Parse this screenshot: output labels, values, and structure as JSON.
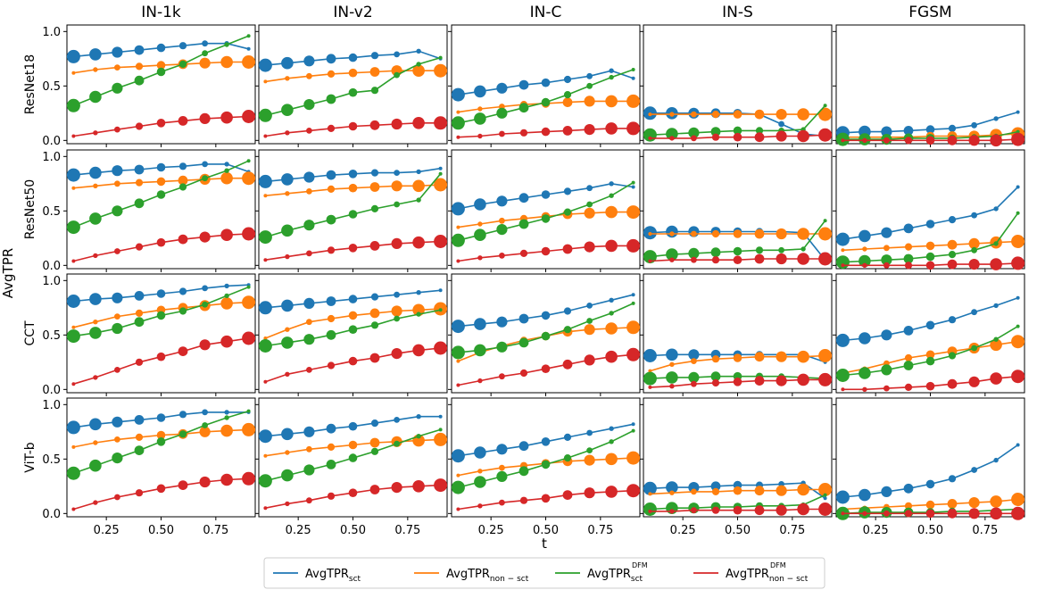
{
  "chart_data": {
    "type": "line",
    "ylabel": "AvgTPR",
    "xlabel": "t",
    "columns": [
      "IN-1k",
      "IN-v2",
      "IN-C",
      "IN-S",
      "FGSM"
    ],
    "rows": [
      "ResNet18",
      "ResNet50",
      "CCT",
      "ViT-b"
    ],
    "x": [
      0.1,
      0.2,
      0.3,
      0.4,
      0.5,
      0.6,
      0.7,
      0.8,
      0.9
    ],
    "xticks": [
      0.25,
      0.5,
      0.75
    ],
    "xtick_labels": [
      "0.25",
      "0.50",
      "0.75"
    ],
    "xlim": [
      0.07,
      0.93
    ],
    "ylim": [
      -0.03,
      1.06
    ],
    "yticks": [
      0.0,
      0.5,
      1.0
    ],
    "ytick_labels": [
      "0.0",
      "0.5",
      "1.0"
    ],
    "marker_size_note": "marker size decreases for sct series and increases for non-sct series as t grows",
    "legend_position": "bottom-center",
    "series": [
      {
        "key": "sct",
        "base": "AvgTPR",
        "sub": "sct",
        "sup": "",
        "color": "#1f77b4",
        "marker": "desc"
      },
      {
        "key": "nonsct",
        "base": "AvgTPR",
        "sub": "non − sct",
        "sup": "",
        "color": "#ff7f0e",
        "marker": "asc"
      },
      {
        "key": "sctdfm",
        "base": "AvgTPR",
        "sub": "sct",
        "sup": "DFM",
        "color": "#2ca02c",
        "marker": "desc"
      },
      {
        "key": "nonsctdfm",
        "base": "AvgTPR",
        "sub": "non − sct",
        "sup": "DFM",
        "color": "#d62728",
        "marker": "asc"
      }
    ],
    "panels": [
      [
        {
          "sct": [
            0.77,
            0.79,
            0.81,
            0.83,
            0.85,
            0.87,
            0.89,
            0.89,
            0.84
          ],
          "nonsct": [
            0.62,
            0.65,
            0.67,
            0.68,
            0.69,
            0.7,
            0.71,
            0.72,
            0.72
          ],
          "sctdfm": [
            0.32,
            0.4,
            0.48,
            0.55,
            0.63,
            0.7,
            0.8,
            0.88,
            0.96
          ],
          "nonsctdfm": [
            0.04,
            0.07,
            0.1,
            0.13,
            0.16,
            0.18,
            0.2,
            0.21,
            0.22
          ]
        },
        {
          "sct": [
            0.69,
            0.71,
            0.73,
            0.75,
            0.76,
            0.78,
            0.79,
            0.82,
            0.75
          ],
          "nonsct": [
            0.54,
            0.57,
            0.59,
            0.61,
            0.62,
            0.63,
            0.64,
            0.64,
            0.64
          ],
          "sctdfm": [
            0.23,
            0.28,
            0.33,
            0.38,
            0.44,
            0.46,
            0.6,
            0.7,
            0.76
          ],
          "nonsctdfm": [
            0.04,
            0.07,
            0.09,
            0.11,
            0.13,
            0.14,
            0.15,
            0.16,
            0.16
          ]
        },
        {
          "sct": [
            0.42,
            0.45,
            0.48,
            0.51,
            0.53,
            0.56,
            0.59,
            0.64,
            0.57
          ],
          "nonsct": [
            0.26,
            0.29,
            0.31,
            0.33,
            0.34,
            0.35,
            0.36,
            0.36,
            0.36
          ],
          "sctdfm": [
            0.16,
            0.2,
            0.25,
            0.3,
            0.35,
            0.42,
            0.5,
            0.58,
            0.65
          ],
          "nonsctdfm": [
            0.03,
            0.04,
            0.06,
            0.07,
            0.08,
            0.09,
            0.1,
            0.11,
            0.11
          ]
        },
        {
          "sct": [
            0.25,
            0.25,
            0.25,
            0.25,
            0.25,
            0.24,
            0.15,
            0.06,
            0.04
          ],
          "nonsct": [
            0.24,
            0.24,
            0.24,
            0.24,
            0.24,
            0.24,
            0.24,
            0.24,
            0.24
          ],
          "sctdfm": [
            0.05,
            0.06,
            0.07,
            0.08,
            0.09,
            0.09,
            0.09,
            0.1,
            0.32
          ],
          "nonsctdfm": [
            0.02,
            0.02,
            0.02,
            0.03,
            0.03,
            0.03,
            0.04,
            0.04,
            0.05
          ]
        },
        {
          "sct": [
            0.07,
            0.08,
            0.08,
            0.09,
            0.1,
            0.11,
            0.14,
            0.2,
            0.26
          ],
          "nonsct": [
            0.03,
            0.03,
            0.03,
            0.03,
            0.04,
            0.04,
            0.04,
            0.05,
            0.06
          ],
          "sctdfm": [
            0.01,
            0.01,
            0.01,
            0.02,
            0.02,
            0.02,
            0.03,
            0.04,
            0.08
          ],
          "nonsctdfm": [
            0.0,
            0.0,
            0.0,
            0.0,
            0.0,
            0.0,
            0.0,
            0.0,
            0.01
          ]
        }
      ],
      [
        {
          "sct": [
            0.83,
            0.85,
            0.87,
            0.88,
            0.9,
            0.91,
            0.93,
            0.93,
            0.86
          ],
          "nonsct": [
            0.71,
            0.73,
            0.75,
            0.76,
            0.77,
            0.78,
            0.79,
            0.8,
            0.8
          ],
          "sctdfm": [
            0.35,
            0.43,
            0.5,
            0.57,
            0.65,
            0.72,
            0.8,
            0.87,
            0.96
          ],
          "nonsctdfm": [
            0.04,
            0.09,
            0.13,
            0.17,
            0.21,
            0.24,
            0.26,
            0.28,
            0.29
          ]
        },
        {
          "sct": [
            0.77,
            0.79,
            0.81,
            0.83,
            0.84,
            0.85,
            0.85,
            0.86,
            0.89
          ],
          "nonsct": [
            0.64,
            0.66,
            0.68,
            0.7,
            0.71,
            0.72,
            0.73,
            0.73,
            0.74
          ],
          "sctdfm": [
            0.26,
            0.32,
            0.37,
            0.42,
            0.47,
            0.52,
            0.56,
            0.6,
            0.84
          ],
          "nonsctdfm": [
            0.05,
            0.08,
            0.11,
            0.14,
            0.16,
            0.18,
            0.2,
            0.21,
            0.22
          ]
        },
        {
          "sct": [
            0.52,
            0.56,
            0.59,
            0.62,
            0.65,
            0.68,
            0.71,
            0.75,
            0.72
          ],
          "nonsct": [
            0.35,
            0.38,
            0.41,
            0.43,
            0.45,
            0.47,
            0.48,
            0.49,
            0.49
          ],
          "sctdfm": [
            0.23,
            0.28,
            0.33,
            0.38,
            0.43,
            0.49,
            0.56,
            0.64,
            0.76
          ],
          "nonsctdfm": [
            0.04,
            0.07,
            0.09,
            0.11,
            0.13,
            0.15,
            0.17,
            0.18,
            0.18
          ]
        },
        {
          "sct": [
            0.3,
            0.31,
            0.31,
            0.31,
            0.31,
            0.31,
            0.31,
            0.3,
            0.05
          ],
          "nonsct": [
            0.29,
            0.29,
            0.29,
            0.29,
            0.29,
            0.29,
            0.29,
            0.29,
            0.29
          ],
          "sctdfm": [
            0.08,
            0.1,
            0.11,
            0.12,
            0.13,
            0.14,
            0.14,
            0.15,
            0.41
          ],
          "nonsctdfm": [
            0.04,
            0.05,
            0.05,
            0.05,
            0.05,
            0.06,
            0.06,
            0.06,
            0.06
          ]
        },
        {
          "sct": [
            0.24,
            0.27,
            0.3,
            0.34,
            0.38,
            0.42,
            0.46,
            0.52,
            0.72
          ],
          "nonsct": [
            0.14,
            0.15,
            0.16,
            0.17,
            0.18,
            0.19,
            0.2,
            0.21,
            0.22
          ],
          "sctdfm": [
            0.03,
            0.04,
            0.05,
            0.06,
            0.08,
            0.1,
            0.14,
            0.2,
            0.48
          ],
          "nonsctdfm": [
            0.0,
            0.0,
            0.0,
            0.0,
            0.0,
            0.01,
            0.01,
            0.01,
            0.02
          ]
        }
      ],
      [
        {
          "sct": [
            0.81,
            0.83,
            0.84,
            0.86,
            0.88,
            0.9,
            0.93,
            0.95,
            0.96
          ],
          "nonsct": [
            0.57,
            0.62,
            0.67,
            0.7,
            0.73,
            0.75,
            0.77,
            0.79,
            0.8
          ],
          "sctdfm": [
            0.49,
            0.52,
            0.56,
            0.62,
            0.68,
            0.72,
            0.78,
            0.86,
            0.94
          ],
          "nonsctdfm": [
            0.05,
            0.11,
            0.18,
            0.25,
            0.3,
            0.35,
            0.41,
            0.44,
            0.47
          ]
        },
        {
          "sct": [
            0.75,
            0.77,
            0.79,
            0.81,
            0.83,
            0.85,
            0.87,
            0.89,
            0.91
          ],
          "nonsct": [
            0.47,
            0.55,
            0.62,
            0.65,
            0.68,
            0.7,
            0.72,
            0.73,
            0.74
          ],
          "sctdfm": [
            0.4,
            0.43,
            0.46,
            0.5,
            0.55,
            0.59,
            0.65,
            0.69,
            0.73
          ],
          "nonsctdfm": [
            0.07,
            0.14,
            0.18,
            0.22,
            0.26,
            0.29,
            0.33,
            0.36,
            0.38
          ]
        },
        {
          "sct": [
            0.58,
            0.6,
            0.62,
            0.65,
            0.68,
            0.72,
            0.77,
            0.82,
            0.87
          ],
          "nonsct": [
            0.26,
            0.34,
            0.4,
            0.45,
            0.49,
            0.53,
            0.55,
            0.56,
            0.57
          ],
          "sctdfm": [
            0.34,
            0.36,
            0.39,
            0.43,
            0.49,
            0.55,
            0.63,
            0.7,
            0.79
          ],
          "nonsctdfm": [
            0.04,
            0.08,
            0.12,
            0.15,
            0.19,
            0.23,
            0.27,
            0.3,
            0.32
          ]
        },
        {
          "sct": [
            0.31,
            0.32,
            0.32,
            0.32,
            0.32,
            0.32,
            0.32,
            0.32,
            0.25
          ],
          "nonsct": [
            0.17,
            0.23,
            0.26,
            0.28,
            0.29,
            0.3,
            0.3,
            0.3,
            0.31
          ],
          "sctdfm": [
            0.1,
            0.11,
            0.11,
            0.12,
            0.12,
            0.12,
            0.12,
            0.11,
            0.1
          ],
          "nonsctdfm": [
            0.02,
            0.03,
            0.05,
            0.06,
            0.07,
            0.08,
            0.08,
            0.09,
            0.09
          ]
        },
        {
          "sct": [
            0.45,
            0.47,
            0.5,
            0.54,
            0.59,
            0.64,
            0.71,
            0.77,
            0.84
          ],
          "nonsct": [
            0.15,
            0.19,
            0.24,
            0.29,
            0.32,
            0.35,
            0.38,
            0.41,
            0.44
          ],
          "sctdfm": [
            0.13,
            0.15,
            0.18,
            0.22,
            0.26,
            0.31,
            0.38,
            0.46,
            0.58
          ],
          "nonsctdfm": [
            0.0,
            0.0,
            0.01,
            0.02,
            0.03,
            0.05,
            0.07,
            0.1,
            0.12
          ]
        }
      ],
      [
        {
          "sct": [
            0.79,
            0.82,
            0.84,
            0.86,
            0.88,
            0.91,
            0.93,
            0.93,
            0.93
          ],
          "nonsct": [
            0.61,
            0.65,
            0.68,
            0.7,
            0.72,
            0.73,
            0.75,
            0.76,
            0.77
          ],
          "sctdfm": [
            0.37,
            0.44,
            0.51,
            0.58,
            0.66,
            0.73,
            0.81,
            0.88,
            0.94
          ],
          "nonsctdfm": [
            0.04,
            0.1,
            0.15,
            0.19,
            0.23,
            0.26,
            0.29,
            0.31,
            0.32
          ]
        },
        {
          "sct": [
            0.71,
            0.73,
            0.75,
            0.78,
            0.8,
            0.83,
            0.86,
            0.89,
            0.89
          ],
          "nonsct": [
            0.53,
            0.56,
            0.59,
            0.61,
            0.63,
            0.65,
            0.66,
            0.67,
            0.68
          ],
          "sctdfm": [
            0.3,
            0.35,
            0.4,
            0.45,
            0.51,
            0.57,
            0.64,
            0.71,
            0.77
          ],
          "nonsctdfm": [
            0.05,
            0.09,
            0.12,
            0.16,
            0.19,
            0.22,
            0.24,
            0.25,
            0.26
          ]
        },
        {
          "sct": [
            0.53,
            0.56,
            0.59,
            0.62,
            0.66,
            0.7,
            0.74,
            0.78,
            0.82
          ],
          "nonsct": [
            0.35,
            0.39,
            0.42,
            0.44,
            0.46,
            0.48,
            0.49,
            0.5,
            0.51
          ],
          "sctdfm": [
            0.24,
            0.29,
            0.34,
            0.39,
            0.45,
            0.51,
            0.58,
            0.66,
            0.76
          ],
          "nonsctdfm": [
            0.04,
            0.07,
            0.1,
            0.12,
            0.14,
            0.17,
            0.19,
            0.2,
            0.21
          ]
        },
        {
          "sct": [
            0.23,
            0.24,
            0.24,
            0.25,
            0.26,
            0.26,
            0.27,
            0.28,
            0.14
          ],
          "nonsct": [
            0.18,
            0.19,
            0.2,
            0.2,
            0.21,
            0.21,
            0.21,
            0.22,
            0.22
          ],
          "sctdfm": [
            0.04,
            0.05,
            0.05,
            0.06,
            0.06,
            0.07,
            0.07,
            0.08,
            0.17
          ],
          "nonsctdfm": [
            0.02,
            0.02,
            0.03,
            0.03,
            0.03,
            0.03,
            0.03,
            0.04,
            0.04
          ]
        },
        {
          "sct": [
            0.15,
            0.17,
            0.2,
            0.23,
            0.27,
            0.32,
            0.4,
            0.49,
            0.63
          ],
          "nonsct": [
            0.04,
            0.05,
            0.06,
            0.07,
            0.08,
            0.09,
            0.1,
            0.11,
            0.13
          ],
          "sctdfm": [
            0.0,
            0.01,
            0.01,
            0.01,
            0.01,
            0.02,
            0.02,
            0.03,
            0.04
          ],
          "nonsctdfm": [
            0.0,
            0.0,
            0.0,
            0.0,
            0.0,
            0.0,
            0.0,
            0.0,
            0.0
          ]
        }
      ]
    ]
  }
}
